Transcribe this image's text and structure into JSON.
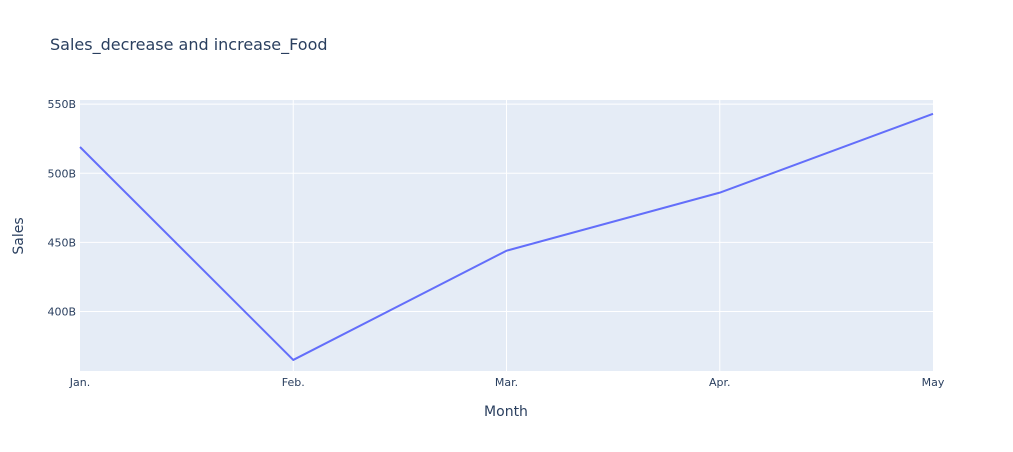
{
  "chart_data": {
    "type": "line",
    "title": "Sales_decrease and increase_Food",
    "xlabel": "Month",
    "ylabel": "Sales",
    "categories": [
      "Jan.",
      "Feb.",
      "Mar.",
      "Apr.",
      "May"
    ],
    "series": [
      {
        "values": [
          519000000000,
          365000000000,
          444000000000,
          486000000000,
          543000000000
        ]
      }
    ],
    "y_ticks": [
      {
        "value": 400000000000,
        "label": "400B"
      },
      {
        "value": 450000000000,
        "label": "450B"
      },
      {
        "value": 500000000000,
        "label": "500B"
      },
      {
        "value": 550000000000,
        "label": "550B"
      }
    ],
    "ylim": [
      357000000000,
      553000000000
    ],
    "grid": true,
    "line_color": "#636efa",
    "plot_bg_color": "#e5ecf6",
    "grid_color": "#ffffff",
    "text_color": "#2a3f5f"
  }
}
